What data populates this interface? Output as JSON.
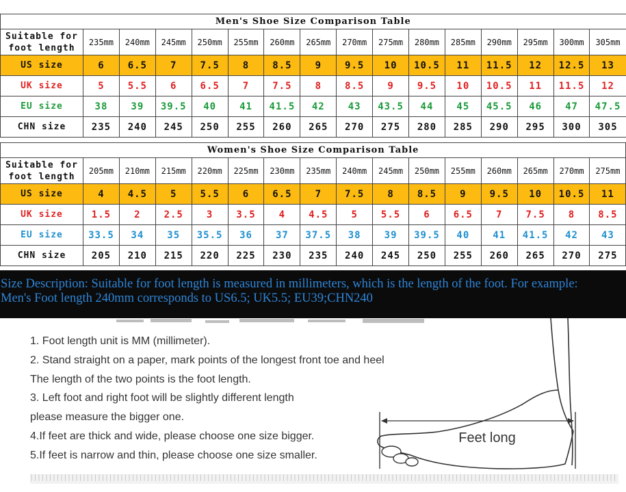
{
  "men": {
    "title": "Men's Shoe Size Comparison Table",
    "label_foot_line1": "Suitable for",
    "label_foot_line2": "foot length",
    "foot_length": [
      "235mm",
      "240mm",
      "245mm",
      "250mm",
      "255mm",
      "260mm",
      "265mm",
      "270mm",
      "275mm",
      "280mm",
      "285mm",
      "290mm",
      "295mm",
      "300mm",
      "305mm"
    ],
    "us_label": "US size",
    "us": [
      "6",
      "6.5",
      "7",
      "7.5",
      "8",
      "8.5",
      "9",
      "9.5",
      "10",
      "10.5",
      "11",
      "11.5",
      "12",
      "12.5",
      "13"
    ],
    "uk_label": "UK size",
    "uk": [
      "5",
      "5.5",
      "6",
      "6.5",
      "7",
      "7.5",
      "8",
      "8.5",
      "9",
      "9.5",
      "10",
      "10.5",
      "11",
      "11.5",
      "12"
    ],
    "eu_label": "EU size",
    "eu": [
      "38",
      "39",
      "39.5",
      "40",
      "41",
      "41.5",
      "42",
      "43",
      "43.5",
      "44",
      "45",
      "45.5",
      "46",
      "47",
      "47.5"
    ],
    "chn_label": "CHN size",
    "chn": [
      "235",
      "240",
      "245",
      "250",
      "255",
      "260",
      "265",
      "270",
      "275",
      "280",
      "285",
      "290",
      "295",
      "300",
      "305"
    ]
  },
  "women": {
    "title": "Women's Shoe Size Comparison Table",
    "label_foot_line1": "Suitable for",
    "label_foot_line2": "foot length",
    "foot_length": [
      "205mm",
      "210mm",
      "215mm",
      "220mm",
      "225mm",
      "230mm",
      "235mm",
      "240mm",
      "245mm",
      "250mm",
      "255mm",
      "260mm",
      "265mm",
      "270mm",
      "275mm"
    ],
    "us_label": "US size",
    "us": [
      "4",
      "4.5",
      "5",
      "5.5",
      "6",
      "6.5",
      "7",
      "7.5",
      "8",
      "8.5",
      "9",
      "9.5",
      "10",
      "10.5",
      "11"
    ],
    "uk_label": "UK size",
    "uk": [
      "1.5",
      "2",
      "2.5",
      "3",
      "3.5",
      "4",
      "4.5",
      "5",
      "5.5",
      "6",
      "6.5",
      "7",
      "7.5",
      "8",
      "8.5"
    ],
    "eu_label": "EU size",
    "eu": [
      "33.5",
      "34",
      "35",
      "35.5",
      "36",
      "37",
      "37.5",
      "38",
      "39",
      "39.5",
      "40",
      "41",
      "41.5",
      "42",
      "43"
    ],
    "chn_label": "CHN size",
    "chn": [
      "205",
      "210",
      "215",
      "220",
      "225",
      "230",
      "235",
      "240",
      "245",
      "250",
      "255",
      "260",
      "265",
      "270",
      "275"
    ]
  },
  "description": {
    "line1": "Size Description: Suitable for foot length is measured in millimeters, which is the length of the foot. For example:",
    "line2": "Men's Foot length 240mm corresponds to US6.5; UK5.5; EU39;CHN240"
  },
  "instructions": {
    "steps": [
      "1. Foot length unit is MM (millimeter).",
      "2. Stand straight on a paper, mark points of the longest front toe and heel",
      "The length of the two points is the foot length.",
      "3. Left foot and right foot will be slightly different length",
      "please measure the bigger one.",
      "4.If feet are thick and wide, please choose one size bigger.",
      "5.If feet is narrow and thin, please choose one size smaller."
    ],
    "illustration_label": "Feet long"
  },
  "colors": {
    "us_row": "#fdbb11",
    "uk_text": "#e01f1f",
    "eu_men_text": "#1a9a3a",
    "eu_women_text": "#1e8fd0",
    "banner_bg": "#0b0b0b",
    "banner_text": "#2f86d8"
  }
}
